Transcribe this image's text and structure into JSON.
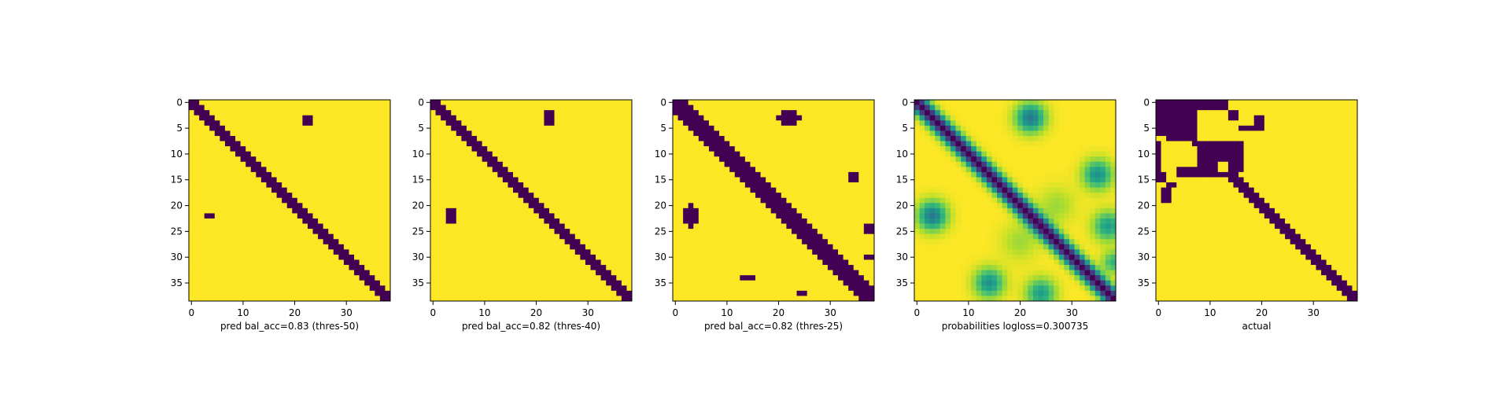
{
  "chart_data": [
    {
      "type": "heatmap",
      "xlabel": "pred bal_acc=0.83 (thres-50)",
      "xticks": [
        0,
        10,
        20,
        30
      ],
      "yticks": [
        0,
        5,
        10,
        15,
        20,
        25,
        30,
        35
      ],
      "grid_size": 39,
      "diagonal": {
        "offset": 0,
        "halfwidth": 1.5,
        "start_row": 0
      },
      "blobs": [
        {
          "row": 3.5,
          "col": 22.5,
          "rx": 0.9,
          "ry": 1.0
        },
        {
          "row": 22.0,
          "col": 3.5,
          "rx": 1.2,
          "ry": 1.0
        }
      ],
      "colors": {
        "low": "#440154",
        "high": "#fde725"
      }
    },
    {
      "type": "heatmap",
      "xlabel": "pred bal_acc=0.82 (thres-40)",
      "xticks": [
        0,
        10,
        20,
        30
      ],
      "yticks": [
        0,
        5,
        10,
        15,
        20,
        25,
        30,
        35
      ],
      "grid_size": 39,
      "diagonal": {
        "offset": 0,
        "halfwidth": 1.7,
        "start_row": 0
      },
      "blobs": [
        {
          "row": 3.0,
          "col": 22.5,
          "rx": 1.2,
          "ry": 1.2
        },
        {
          "row": 22.0,
          "col": 3.5,
          "rx": 1.4,
          "ry": 1.2
        }
      ],
      "colors": {
        "low": "#440154",
        "high": "#fde725"
      }
    },
    {
      "type": "heatmap",
      "xlabel": "pred bal_acc=0.82 (thres-25)",
      "xticks": [
        0,
        10,
        20,
        30
      ],
      "yticks": [
        0,
        5,
        10,
        15,
        20,
        25,
        30,
        35
      ],
      "grid_size": 39,
      "diagonal": {
        "offset": 0,
        "halfwidth": 2.0,
        "start_row": 0
      },
      "blobs": [
        {
          "row": 3.0,
          "col": 22.0,
          "rx": 2.2,
          "ry": 1.5
        },
        {
          "row": 22.0,
          "col": 3.0,
          "rx": 1.3,
          "ry": 2.3
        },
        {
          "row": 14.5,
          "col": 34.5,
          "rx": 0.8,
          "ry": 1.2
        },
        {
          "row": 24.5,
          "col": 37.5,
          "rx": 1.3,
          "ry": 0.8
        },
        {
          "row": 34.0,
          "col": 14.0,
          "rx": 1.0,
          "ry": 0.9
        },
        {
          "row": 37.0,
          "col": 24.5,
          "rx": 0.8,
          "ry": 1.0
        },
        {
          "row": 30.0,
          "col": 38.0,
          "rx": 1.0,
          "ry": 0.8
        }
      ],
      "colors": {
        "low": "#440154",
        "high": "#fde725"
      }
    },
    {
      "type": "heatmap",
      "xlabel": "probabilities logloss=0.300735",
      "xticks": [
        0,
        10,
        20,
        30
      ],
      "yticks": [
        0,
        5,
        10,
        15,
        20,
        25,
        30,
        35
      ],
      "grid_size": 39,
      "continuous": true,
      "diagonal_sigma": 1.6,
      "blobs": [
        {
          "row": 3,
          "col": 22,
          "sigma": 2.0,
          "amp": 0.6
        },
        {
          "row": 22,
          "col": 3,
          "sigma": 2.0,
          "amp": 0.6
        },
        {
          "row": 14,
          "col": 35,
          "sigma": 2.0,
          "amp": 0.5
        },
        {
          "row": 35,
          "col": 14,
          "sigma": 2.0,
          "amp": 0.5
        },
        {
          "row": 24,
          "col": 37,
          "sigma": 2.0,
          "amp": 0.45
        },
        {
          "row": 37,
          "col": 24,
          "sigma": 2.0,
          "amp": 0.45
        },
        {
          "row": 31,
          "col": 38,
          "sigma": 1.5,
          "amp": 0.35
        },
        {
          "row": 20,
          "col": 27,
          "sigma": 2.5,
          "amp": 0.15
        },
        {
          "row": 27,
          "col": 20,
          "sigma": 2.5,
          "amp": 0.15
        }
      ],
      "colors": {
        "low": "#440154",
        "high": "#fde725"
      }
    },
    {
      "type": "heatmap",
      "xlabel": "actual",
      "xticks": [
        0,
        10,
        20,
        30
      ],
      "yticks": [
        0,
        5,
        10,
        15,
        20,
        25,
        30,
        35
      ],
      "grid_size": 39,
      "diagonal": {
        "offset": 0,
        "halfwidth": 1.6,
        "start_row": 8
      },
      "rects": [
        [
          0,
          0,
          8,
          8
        ],
        [
          0,
          8,
          2,
          14
        ],
        [
          2,
          14,
          4,
          16
        ],
        [
          8,
          0,
          14,
          1
        ],
        [
          14,
          0,
          16,
          2
        ],
        [
          8,
          8,
          15,
          15
        ],
        [
          10,
          15,
          14,
          17
        ],
        [
          13,
          4,
          15,
          8
        ],
        [
          8,
          15,
          12,
          17
        ],
        [
          3,
          19,
          6,
          21
        ],
        [
          5,
          16,
          6,
          20
        ],
        [
          16,
          2,
          17,
          4
        ],
        [
          17,
          1,
          20,
          3
        ]
      ],
      "holes": [
        [
          10,
          1,
          13,
          3
        ],
        [
          7,
          0,
          8,
          2
        ],
        [
          0,
          14,
          2,
          16
        ],
        [
          12,
          12,
          14,
          14
        ]
      ],
      "colors": {
        "low": "#440154",
        "high": "#fde725"
      }
    }
  ]
}
